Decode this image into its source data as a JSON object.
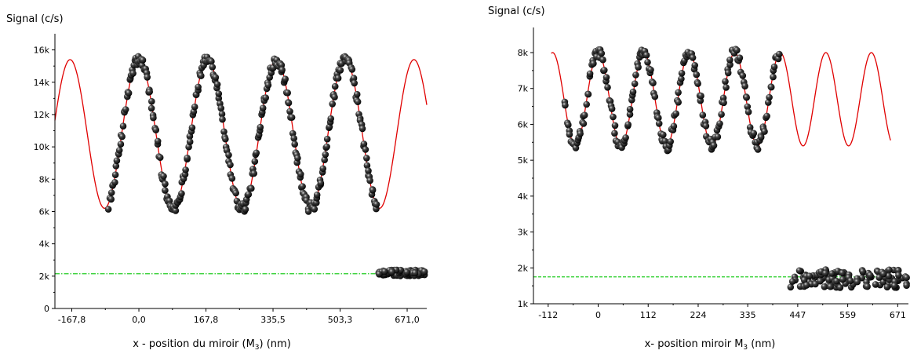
{
  "chart_data": [
    {
      "type": "scatter",
      "ylabel": "Signal (c/s)",
      "xlabel_parts": {
        "before": "x - position du miroir (M",
        "sub": "3",
        "after": ") (nm)"
      },
      "xlim": [
        -210,
        720
      ],
      "ylim": [
        0,
        17000
      ],
      "x_ticks": [
        -167.8,
        0.0,
        167.8,
        335.5,
        503.3,
        671.0
      ],
      "x_tick_labels": [
        "-167,8",
        "0,0",
        "167,8",
        "335,5",
        "503,3",
        "671,0"
      ],
      "y_ticks": [
        0,
        2000,
        4000,
        6000,
        8000,
        10000,
        12000,
        14000,
        16000
      ],
      "y_tick_labels": [
        "0",
        "2k",
        "4k",
        "6k",
        "8k",
        "10k",
        "12k",
        "14k",
        "16k"
      ],
      "fit": {
        "color": "#e00000",
        "mean": 10800,
        "amplitude": 4600,
        "period": 172,
        "peak_x": 0.0,
        "x_range": [
          -210,
          720
        ]
      },
      "baseline": {
        "color": "#22cc22",
        "y": 2150,
        "x_range": [
          -210,
          720
        ]
      },
      "data": {
        "x_range": [
          -75,
          595
        ],
        "background_x_range": [
          600,
          720
        ],
        "background_y": 2200,
        "background_spread": 180,
        "noise": 700,
        "color": "#111111"
      }
    },
    {
      "type": "scatter",
      "ylabel": "Signal (c/s)",
      "xlabel_parts": {
        "before": "x- position miroir M",
        "sub": "3",
        "after": " (nm)"
      },
      "xlim": [
        -145,
        695
      ],
      "ylim": [
        1000,
        8700
      ],
      "x_ticks": [
        -112,
        0,
        112,
        224,
        335,
        447,
        559,
        671
      ],
      "x_tick_labels": [
        "-112",
        "0",
        "112",
        "224",
        "335",
        "447",
        "559",
        "671"
      ],
      "y_ticks": [
        1000,
        2000,
        3000,
        4000,
        5000,
        6000,
        7000,
        8000
      ],
      "y_tick_labels": [
        "1k",
        "2k",
        "3k",
        "4k",
        "5k",
        "6k",
        "7k",
        "8k"
      ],
      "fit": {
        "color": "#e00000",
        "mean": 6700,
        "amplitude": 1300,
        "period": 102,
        "peak_x": 0,
        "x_range": [
          -105,
          655
        ]
      },
      "baseline": {
        "color": "#22cc22",
        "y": 1750,
        "x_range": [
          -145,
          695
        ]
      },
      "data": {
        "x_range": [
          -75,
          405
        ],
        "background_x_range": [
          430,
          695
        ],
        "background_y": 1700,
        "background_spread": 250,
        "noise": 350,
        "color": "#111111"
      }
    }
  ]
}
